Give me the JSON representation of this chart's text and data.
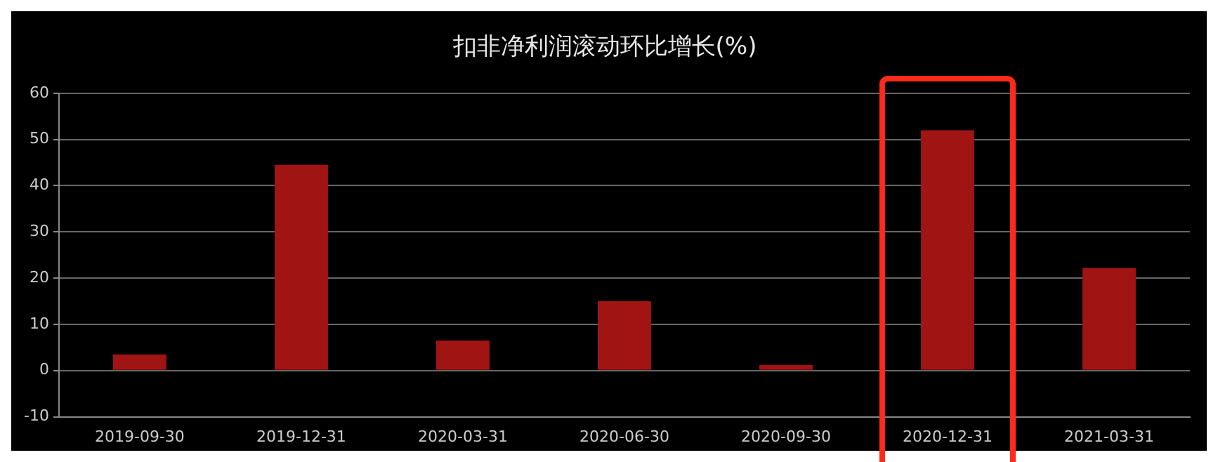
{
  "chart_data": {
    "type": "bar",
    "title": "扣非净利润滚动环比增长(%)",
    "categories": [
      "2019-09-30",
      "2019-12-31",
      "2020-03-31",
      "2020-06-30",
      "2020-09-30",
      "2020-12-31",
      "2021-03-31"
    ],
    "values": [
      3.5,
      44.5,
      6.5,
      15,
      1.2,
      52,
      22.2
    ],
    "color": "#a01414",
    "ylim": [
      -10,
      60
    ],
    "yticks": [
      -10,
      0,
      10,
      20,
      30,
      40,
      50,
      60
    ],
    "grid": "y"
  }
}
